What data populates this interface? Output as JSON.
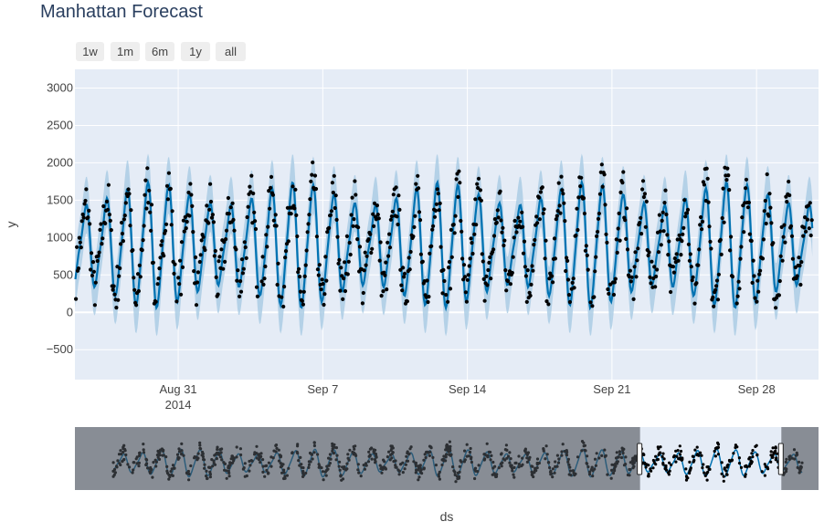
{
  "title": "Manhattan Forecast",
  "range_selector": [
    "1w",
    "1m",
    "6m",
    "1y",
    "all"
  ],
  "chart_data": {
    "type": "line",
    "title": "Manhattan Forecast",
    "xlabel": "ds",
    "ylabel": "y",
    "ylim": [
      -900,
      3250
    ],
    "xlim": [
      "2014-08-26",
      "2014-10-01"
    ],
    "yticks": [
      -500,
      0,
      500,
      1000,
      1500,
      2000,
      2500,
      3000
    ],
    "xticks": [
      {
        "date": "2014-08-31",
        "label": "Aug 31",
        "sublabel": "2014"
      },
      {
        "date": "2014-09-07",
        "label": "Sep 7",
        "sublabel": ""
      },
      {
        "date": "2014-09-14",
        "label": "Sep 14",
        "sublabel": ""
      },
      {
        "date": "2014-09-21",
        "label": "Sep 21",
        "sublabel": ""
      },
      {
        "date": "2014-09-28",
        "label": "Sep 28",
        "sublabel": ""
      }
    ],
    "series": [
      {
        "kind": "forecast yhat",
        "color": "#0072B2",
        "approx": "daily oscillation between about 100 and 1800 peaking near 1000 mean"
      },
      {
        "kind": "uncertainty interval",
        "color": "rgba(0,114,178,0.2)"
      },
      {
        "kind": "observed points",
        "color": "#000000"
      }
    ],
    "rangeslider": {
      "selected_start_fraction": 0.76,
      "selected_end_fraction": 0.95
    }
  },
  "colors": {
    "plot_bg": "#e5ecf6",
    "line": "#0072B2",
    "band": "#a8cbe3",
    "points": "#000000"
  }
}
